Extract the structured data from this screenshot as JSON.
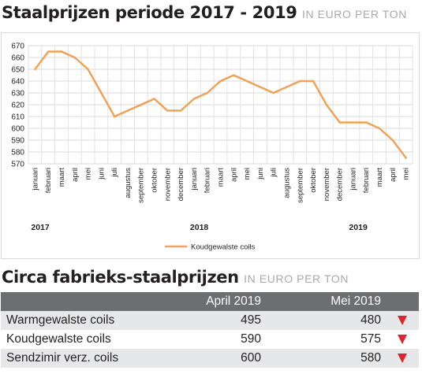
{
  "header": {
    "title": "Staalprijzen periode 2017 - 2019",
    "unit": "IN EURO PER TON"
  },
  "chart_data": {
    "type": "line",
    "x": [
      "januari",
      "februari",
      "maart",
      "april",
      "mei",
      "juni",
      "juli",
      "augustus",
      "september",
      "oktober",
      "november",
      "december",
      "januari",
      "februari",
      "maart",
      "april",
      "mei",
      "juni",
      "juli",
      "augustus",
      "september",
      "oktober",
      "november",
      "december",
      "januari",
      "februari",
      "maart",
      "april",
      "mei"
    ],
    "years": [
      {
        "label": "2017",
        "start_index": 0
      },
      {
        "label": "2018",
        "start_index": 12
      },
      {
        "label": "2019",
        "start_index": 24
      }
    ],
    "series": [
      {
        "name": "Koudgewalste coils",
        "values": [
          650,
          665,
          665,
          660,
          650,
          630,
          610,
          615,
          620,
          625,
          615,
          615,
          625,
          630,
          640,
          645,
          640,
          635,
          630,
          635,
          640,
          640,
          620,
          605,
          605,
          605,
          600,
          590,
          575
        ]
      }
    ],
    "ylim": [
      570,
      670
    ],
    "yticks": [
      570,
      580,
      590,
      600,
      610,
      620,
      630,
      640,
      650,
      660,
      670
    ],
    "grid": true,
    "legend": "bottom-center",
    "line_color": "#f0a155"
  },
  "table": {
    "title": "Circa fabrieks-staalprijzen",
    "unit": "IN EURO PER TON",
    "columns": [
      "",
      "April 2019",
      "Mei 2019",
      ""
    ],
    "rows": [
      {
        "name": "Warmgewalste coils",
        "april": "495",
        "mei": "480",
        "trend": "down"
      },
      {
        "name": "Koudgewalste coils",
        "april": "590",
        "mei": "575",
        "trend": "down"
      },
      {
        "name": "Sendzimir verz. coils",
        "april": "600",
        "mei": "580",
        "trend": "down"
      }
    ],
    "header_color": "#6d6e71",
    "arrow_color": "#e4222a"
  }
}
